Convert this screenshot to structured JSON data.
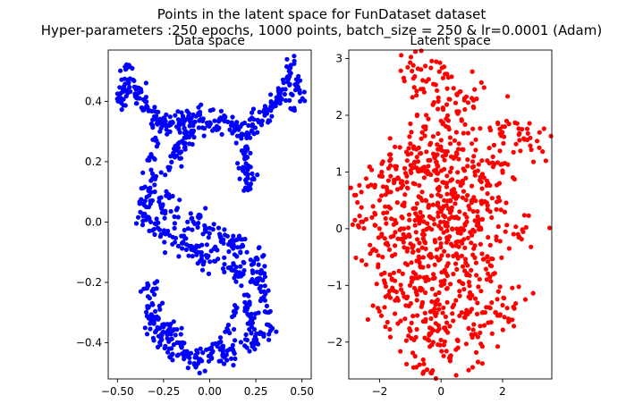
{
  "figure": {
    "title_line1": "Points in the latent space for FunDataset dataset",
    "title_line2": "Hyper-parameters :250 epochs, 1000 points, batch_size = 250 & lr=0.0001 (Adam)"
  },
  "chart_data": [
    {
      "type": "scatter",
      "title": "Data space",
      "xlabel": "",
      "ylabel": "",
      "color": "#0000ff",
      "xlim": [
        -0.55,
        0.55
      ],
      "ylim": [
        -0.52,
        0.57
      ],
      "xticks": [
        -0.5,
        -0.25,
        0.0,
        0.25,
        0.5
      ],
      "xtick_labels": [
        "−0.50",
        "−0.25",
        "0.00",
        "0.25",
        "0.50"
      ],
      "yticks": [
        -0.4,
        -0.2,
        0.0,
        0.2,
        0.4
      ],
      "ytick_labels": [
        "−0.4",
        "−0.2",
        "0.0",
        "0.2",
        "0.4"
      ],
      "grid": false,
      "shape": "S-shaped point cloud with curled top ends",
      "point_count": 1000,
      "points": [
        [
          -0.45,
          0.51
        ],
        [
          -0.44,
          0.46
        ],
        [
          -0.47,
          0.44
        ],
        [
          -0.48,
          0.41
        ],
        [
          -0.4,
          0.44
        ],
        [
          -0.38,
          0.41
        ],
        [
          -0.35,
          0.4
        ],
        [
          -0.33,
          0.37
        ],
        [
          -0.3,
          0.35
        ],
        [
          -0.27,
          0.33
        ],
        [
          -0.24,
          0.32
        ],
        [
          -0.21,
          0.33
        ],
        [
          -0.17,
          0.34
        ],
        [
          -0.13,
          0.34
        ],
        [
          -0.09,
          0.33
        ],
        [
          -0.05,
          0.34
        ],
        [
          0.0,
          0.33
        ],
        [
          0.04,
          0.31
        ],
        [
          0.08,
          0.34
        ],
        [
          0.12,
          0.33
        ],
        [
          0.15,
          0.31
        ],
        [
          0.18,
          0.29
        ],
        [
          0.21,
          0.32
        ],
        [
          0.24,
          0.34
        ],
        [
          0.28,
          0.33
        ],
        [
          0.31,
          0.36
        ],
        [
          0.34,
          0.38
        ],
        [
          0.38,
          0.41
        ],
        [
          0.41,
          0.44
        ],
        [
          0.43,
          0.48
        ],
        [
          0.44,
          0.52
        ],
        [
          0.47,
          0.45
        ],
        [
          0.49,
          0.4
        ],
        [
          0.46,
          0.37
        ],
        [
          0.2,
          0.25
        ],
        [
          0.19,
          0.21
        ],
        [
          0.18,
          0.17
        ],
        [
          0.2,
          0.13
        ],
        [
          0.23,
          0.16
        ],
        [
          0.22,
          0.11
        ],
        [
          -0.28,
          0.26
        ],
        [
          -0.3,
          0.21
        ],
        [
          -0.31,
          0.16
        ],
        [
          -0.33,
          0.11
        ],
        [
          -0.35,
          0.07
        ],
        [
          -0.36,
          0.02
        ],
        [
          -0.32,
          0.0
        ],
        [
          -0.28,
          -0.02
        ],
        [
          -0.24,
          -0.04
        ],
        [
          -0.2,
          -0.05
        ],
        [
          -0.15,
          -0.07
        ],
        [
          -0.11,
          -0.08
        ],
        [
          -0.06,
          -0.1
        ],
        [
          -0.02,
          -0.11
        ],
        [
          0.03,
          -0.13
        ],
        [
          0.08,
          -0.14
        ],
        [
          0.13,
          -0.16
        ],
        [
          0.18,
          -0.17
        ],
        [
          0.23,
          -0.19
        ],
        [
          0.27,
          -0.22
        ],
        [
          0.3,
          -0.26
        ],
        [
          0.32,
          -0.3
        ],
        [
          0.31,
          -0.34
        ],
        [
          0.28,
          -0.37
        ],
        [
          0.24,
          -0.39
        ],
        [
          0.19,
          -0.41
        ],
        [
          0.13,
          -0.43
        ],
        [
          0.07,
          -0.44
        ],
        [
          0.01,
          -0.45
        ],
        [
          -0.05,
          -0.46
        ],
        [
          -0.11,
          -0.45
        ],
        [
          -0.17,
          -0.44
        ],
        [
          -0.22,
          -0.42
        ],
        [
          -0.26,
          -0.39
        ],
        [
          -0.29,
          -0.36
        ],
        [
          -0.31,
          -0.32
        ],
        [
          -0.33,
          -0.28
        ],
        [
          -0.34,
          -0.22
        ],
        [
          -0.3,
          -0.24
        ],
        [
          -0.27,
          -0.29
        ],
        [
          -0.22,
          0.18
        ],
        [
          -0.18,
          0.22
        ],
        [
          -0.14,
          0.26
        ],
        [
          -0.1,
          0.29
        ],
        [
          -0.26,
          0.05
        ],
        [
          -0.22,
          0.08
        ],
        [
          -0.18,
          0.04
        ],
        [
          -0.12,
          0.0
        ],
        [
          -0.06,
          0.02
        ],
        [
          0.0,
          -0.02
        ],
        [
          0.06,
          -0.05
        ],
        [
          0.12,
          -0.06
        ],
        [
          0.18,
          -0.08
        ],
        [
          0.25,
          -0.12
        ],
        [
          0.28,
          -0.16
        ],
        [
          0.14,
          -0.3
        ],
        [
          0.2,
          -0.28
        ],
        [
          0.22,
          -0.33
        ],
        [
          0.1,
          -0.36
        ],
        [
          -0.2,
          -0.36
        ],
        [
          -0.25,
          -0.34
        ],
        [
          -0.15,
          -0.4
        ],
        [
          -0.05,
          -0.42
        ],
        [
          0.05,
          -0.4
        ]
      ]
    },
    {
      "type": "scatter",
      "title": "Latent space",
      "xlabel": "",
      "ylabel": "",
      "color": "#ff0000",
      "xlim": [
        -3.0,
        3.6
      ],
      "ylim": [
        -2.65,
        3.15
      ],
      "xticks": [
        -2,
        0,
        2
      ],
      "xtick_labels": [
        "−2",
        "0",
        "2"
      ],
      "yticks": [
        -2,
        -1,
        0,
        1,
        2,
        3
      ],
      "ytick_labels": [
        "−2",
        "−1",
        "0",
        "1",
        "2",
        "3"
      ],
      "grid": false,
      "shape": "roughly Gaussian blob centered near (0, 0)",
      "point_count": 1000,
      "points": [
        [
          -0.9,
          2.88
        ],
        [
          -0.75,
          2.82
        ],
        [
          0.2,
          2.47
        ],
        [
          0.6,
          2.41
        ],
        [
          1.0,
          2.3
        ],
        [
          -0.25,
          2.55
        ],
        [
          2.55,
          1.56
        ],
        [
          2.9,
          1.6
        ],
        [
          3.3,
          1.36
        ],
        [
          2.0,
          1.8
        ],
        [
          1.85,
          1.85
        ],
        [
          -2.8,
          0.15
        ],
        [
          -2.6,
          0.12
        ],
        [
          -2.0,
          0.5
        ],
        [
          2.5,
          -0.1
        ],
        [
          2.85,
          0.23
        ],
        [
          2.0,
          -1.35
        ],
        [
          2.15,
          -1.4
        ],
        [
          1.6,
          -1.4
        ],
        [
          -0.7,
          -2.4
        ],
        [
          1.2,
          -2.35
        ],
        [
          0.55,
          -2.1
        ],
        [
          0.3,
          -2.25
        ],
        [
          -0.3,
          -2.05
        ],
        [
          -1.5,
          -1.5
        ],
        [
          -1.8,
          -1.2
        ],
        [
          -1.0,
          -1.8
        ],
        [
          -0.5,
          -1.6
        ],
        [
          0.1,
          -1.75
        ],
        [
          0.8,
          -1.5
        ],
        [
          1.3,
          -1.1
        ],
        [
          1.7,
          -0.8
        ],
        [
          1.8,
          -0.2
        ],
        [
          1.6,
          0.3
        ],
        [
          1.9,
          0.8
        ],
        [
          1.5,
          1.2
        ],
        [
          1.0,
          1.5
        ],
        [
          0.5,
          1.7
        ],
        [
          0.0,
          1.9
        ],
        [
          -0.5,
          1.8
        ],
        [
          -1.0,
          1.5
        ],
        [
          -1.5,
          1.1
        ],
        [
          -1.8,
          0.6
        ],
        [
          -2.0,
          0.0
        ],
        [
          -1.9,
          -0.5
        ],
        [
          -1.6,
          -0.9
        ],
        [
          -1.2,
          -1.2
        ],
        [
          -0.8,
          -1.1
        ],
        [
          -0.4,
          -0.9
        ],
        [
          0.0,
          -1.0
        ],
        [
          0.4,
          -0.8
        ],
        [
          0.8,
          -0.6
        ],
        [
          1.1,
          -0.3
        ],
        [
          1.2,
          0.1
        ],
        [
          1.0,
          0.5
        ],
        [
          0.7,
          0.8
        ],
        [
          0.3,
          1.0
        ],
        [
          -0.1,
          1.1
        ],
        [
          -0.5,
          1.0
        ],
        [
          -0.9,
          0.8
        ],
        [
          -1.2,
          0.4
        ],
        [
          -1.3,
          0.0
        ],
        [
          -1.1,
          -0.4
        ],
        [
          -0.7,
          -0.6
        ],
        [
          -0.3,
          -0.5
        ],
        [
          0.1,
          -0.4
        ],
        [
          0.5,
          -0.3
        ],
        [
          0.7,
          0.0
        ],
        [
          0.6,
          0.3
        ],
        [
          0.3,
          0.5
        ],
        [
          -0.1,
          0.6
        ],
        [
          -0.5,
          0.5
        ],
        [
          -0.7,
          0.2
        ],
        [
          -0.6,
          -0.1
        ],
        [
          -0.2,
          -0.2
        ],
        [
          0.2,
          0.1
        ],
        [
          0.0,
          0.3
        ],
        [
          0.4,
          0.2
        ],
        [
          0.9,
          0.4
        ],
        [
          -0.9,
          -0.3
        ],
        [
          1.4,
          0.9
        ],
        [
          -1.4,
          0.9
        ],
        [
          0.2,
          -1.3
        ],
        [
          -0.1,
          1.4
        ],
        [
          0.6,
          -1.1
        ],
        [
          -0.6,
          -1.3
        ],
        [
          1.1,
          1.0
        ],
        [
          -1.1,
          1.2
        ],
        [
          0.9,
          -1.2
        ],
        [
          -0.2,
          -1.5
        ],
        [
          0.3,
          1.5
        ],
        [
          -0.8,
          1.4
        ],
        [
          1.5,
          -0.5
        ],
        [
          -1.5,
          -0.3
        ],
        [
          0.0,
          0.0
        ],
        [
          0.45,
          0.55
        ]
      ]
    }
  ]
}
